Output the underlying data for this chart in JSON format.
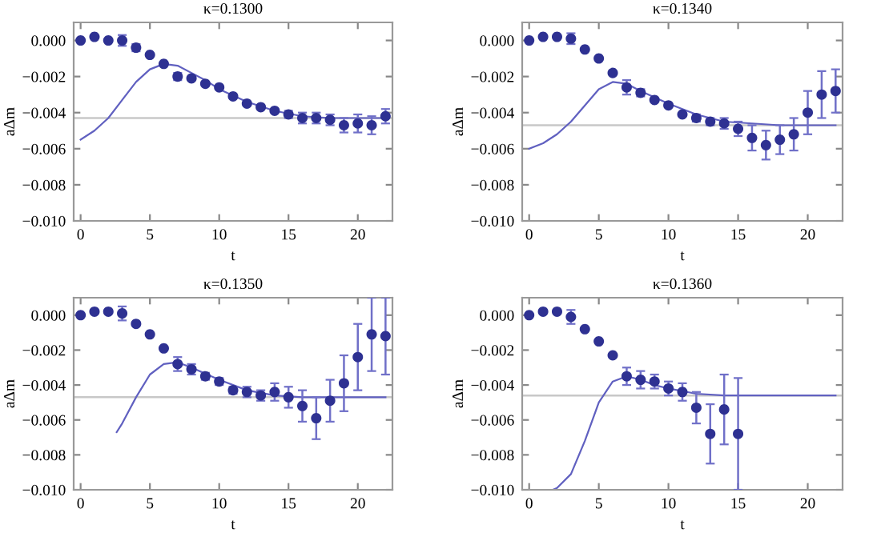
{
  "chart_data": [
    {
      "type": "scatter",
      "title": "κ=0.1300",
      "xlabel": "t",
      "ylabel": "aΔm",
      "xlim": [
        -0.5,
        22.5
      ],
      "ylim": [
        -0.01,
        0.001
      ],
      "xticks": [
        0,
        5,
        10,
        15,
        20
      ],
      "yticks": [
        {
          "value": -0.01,
          "label": "−0.010"
        },
        {
          "value": -0.008,
          "label": "−0.008"
        },
        {
          "value": -0.006,
          "label": "−0.006"
        },
        {
          "value": -0.004,
          "label": "−0.004"
        },
        {
          "value": -0.002,
          "label": "−0.002"
        },
        {
          "value": 0.0,
          "label": "0.000"
        }
      ],
      "grid": false,
      "legend": false,
      "series": [
        {
          "type": "scatter",
          "marker": "circle",
          "color": "#2e3192",
          "x": [
            0,
            1,
            2,
            3,
            4,
            5,
            6,
            7,
            8,
            9,
            10,
            11,
            12,
            13,
            14,
            15,
            16,
            17,
            18,
            19,
            20,
            21,
            22
          ],
          "values": [
            0.0,
            0.0002,
            0.0,
            0.0,
            -0.0004,
            -0.0008,
            -0.0013,
            -0.002,
            -0.0021,
            -0.0024,
            -0.0026,
            -0.0031,
            -0.0035,
            -0.0037,
            -0.0039,
            -0.0041,
            -0.0043,
            -0.0043,
            -0.0044,
            -0.0047,
            -0.0046,
            -0.0047,
            -0.0042
          ],
          "errors": [
            null,
            null,
            null,
            0.0003,
            0.0002,
            null,
            null,
            0.0002,
            null,
            null,
            null,
            null,
            null,
            null,
            null,
            0.0002,
            0.0003,
            0.0003,
            0.0003,
            0.0004,
            0.0005,
            0.0005,
            0.0004
          ]
        },
        {
          "type": "line",
          "color": "#6060c0",
          "x": [
            0,
            1,
            2,
            3,
            4,
            5,
            6,
            7,
            8,
            9,
            10,
            12,
            14,
            16,
            18,
            20,
            22
          ],
          "values": [
            -0.0055,
            -0.005,
            -0.0043,
            -0.0033,
            -0.0023,
            -0.0016,
            -0.0013,
            -0.0014,
            -0.0018,
            -0.0022,
            -0.0027,
            -0.0034,
            -0.0039,
            -0.0042,
            -0.0043,
            -0.0043,
            -0.0043
          ]
        }
      ],
      "ref_lines": [
        {
          "axis": "y",
          "value": -0.0043,
          "color": "#c8c8c8"
        }
      ]
    },
    {
      "type": "scatter",
      "title": "κ=0.1340",
      "xlabel": "t",
      "ylabel": "aΔm",
      "xlim": [
        -0.5,
        22.5
      ],
      "ylim": [
        -0.01,
        0.001
      ],
      "xticks": [
        0,
        5,
        10,
        15,
        20
      ],
      "yticks": [
        {
          "value": -0.01,
          "label": "−0.010"
        },
        {
          "value": -0.008,
          "label": "−0.008"
        },
        {
          "value": -0.006,
          "label": "−0.006"
        },
        {
          "value": -0.004,
          "label": "−0.004"
        },
        {
          "value": -0.002,
          "label": "−0.002"
        },
        {
          "value": 0.0,
          "label": "0.000"
        }
      ],
      "grid": false,
      "legend": false,
      "series": [
        {
          "type": "scatter",
          "marker": "circle",
          "color": "#2e3192",
          "x": [
            0,
            1,
            2,
            3,
            4,
            5,
            6,
            7,
            8,
            9,
            10,
            11,
            12,
            13,
            14,
            15,
            16,
            17,
            18,
            19,
            20,
            21,
            22
          ],
          "values": [
            0.0,
            0.0002,
            0.0002,
            0.0001,
            -0.0005,
            -0.001,
            -0.0018,
            -0.0026,
            -0.0029,
            -0.0033,
            -0.0036,
            -0.0041,
            -0.0043,
            -0.0045,
            -0.0046,
            -0.0049,
            -0.0054,
            -0.0058,
            -0.0055,
            -0.0052,
            -0.004,
            -0.003,
            -0.0028
          ],
          "errors": [
            null,
            null,
            null,
            0.0003,
            null,
            null,
            null,
            0.0004,
            0.0002,
            null,
            null,
            null,
            0.0002,
            0.0002,
            0.0003,
            0.0004,
            0.0007,
            0.0008,
            0.0008,
            0.0009,
            0.0012,
            0.0013,
            0.0012
          ]
        },
        {
          "type": "line",
          "color": "#6060c0",
          "x": [
            0,
            1,
            2,
            3,
            4,
            5,
            6,
            7,
            8,
            10,
            12,
            14,
            16,
            18,
            20,
            22
          ],
          "values": [
            -0.006,
            -0.0057,
            -0.0052,
            -0.0045,
            -0.0036,
            -0.0027,
            -0.0023,
            -0.0024,
            -0.0028,
            -0.0035,
            -0.0041,
            -0.0045,
            -0.0046,
            -0.0047,
            -0.0047,
            -0.0047
          ]
        }
      ],
      "ref_lines": [
        {
          "axis": "y",
          "value": -0.0047,
          "color": "#c8c8c8"
        }
      ]
    },
    {
      "type": "scatter",
      "title": "κ=0.1350",
      "xlabel": "t",
      "ylabel": "aΔm",
      "xlim": [
        -0.5,
        22.5
      ],
      "ylim": [
        -0.01,
        0.001
      ],
      "xticks": [
        0,
        5,
        10,
        15,
        20
      ],
      "yticks": [
        {
          "value": -0.01,
          "label": "−0.010"
        },
        {
          "value": -0.008,
          "label": "−0.008"
        },
        {
          "value": -0.006,
          "label": "−0.006"
        },
        {
          "value": -0.004,
          "label": "−0.004"
        },
        {
          "value": -0.002,
          "label": "−0.002"
        },
        {
          "value": 0.0,
          "label": "0.000"
        }
      ],
      "grid": false,
      "legend": false,
      "series": [
        {
          "type": "scatter",
          "marker": "circle",
          "color": "#2e3192",
          "x": [
            0,
            1,
            2,
            3,
            4,
            5,
            6,
            7,
            8,
            9,
            10,
            11,
            12,
            13,
            14,
            15,
            16,
            17,
            18,
            19,
            20,
            21,
            22
          ],
          "values": [
            0.0,
            0.0002,
            0.0002,
            0.0001,
            -0.0005,
            -0.0011,
            -0.0019,
            -0.0028,
            -0.0031,
            -0.0035,
            -0.0038,
            -0.0043,
            -0.0044,
            -0.0046,
            -0.0044,
            -0.0047,
            -0.0052,
            -0.0059,
            -0.0049,
            -0.0039,
            -0.0024,
            -0.0011,
            -0.0012
          ],
          "errors": [
            null,
            null,
            null,
            0.0004,
            null,
            null,
            null,
            0.0004,
            0.0003,
            0.0002,
            0.0002,
            0.0002,
            0.0003,
            0.0003,
            0.0005,
            0.0006,
            0.0009,
            0.0012,
            0.0012,
            0.0016,
            0.0019,
            0.0021,
            0.0022
          ]
        },
        {
          "type": "line",
          "color": "#6060c0",
          "x": [
            2.6,
            3,
            4,
            5,
            6,
            7,
            8,
            10,
            12,
            14,
            16,
            18,
            20,
            22
          ],
          "values": [
            -0.0067,
            -0.0062,
            -0.0047,
            -0.0034,
            -0.0028,
            -0.0027,
            -0.003,
            -0.0037,
            -0.0043,
            -0.0046,
            -0.0047,
            -0.0047,
            -0.0047,
            -0.0047
          ]
        }
      ],
      "ref_lines": [
        {
          "axis": "y",
          "value": -0.0047,
          "color": "#c8c8c8"
        }
      ]
    },
    {
      "type": "scatter",
      "title": "κ=0.1360",
      "xlabel": "t",
      "ylabel": "aΔm",
      "xlim": [
        -0.5,
        22.5
      ],
      "ylim": [
        -0.01,
        0.001
      ],
      "xticks": [
        0,
        5,
        10,
        15,
        20
      ],
      "yticks": [
        {
          "value": -0.01,
          "label": "−0.010"
        },
        {
          "value": -0.008,
          "label": "−0.008"
        },
        {
          "value": -0.006,
          "label": "−0.006"
        },
        {
          "value": -0.004,
          "label": "−0.004"
        },
        {
          "value": -0.002,
          "label": "−0.002"
        },
        {
          "value": 0.0,
          "label": "0.000"
        }
      ],
      "grid": false,
      "legend": false,
      "series": [
        {
          "type": "scatter",
          "marker": "circle",
          "color": "#2e3192",
          "x": [
            0,
            1,
            2,
            3,
            4,
            5,
            6,
            7,
            8,
            9,
            10,
            11,
            12,
            13,
            14,
            15
          ],
          "values": [
            0.0,
            0.0002,
            0.0002,
            -0.0001,
            -0.0008,
            -0.0015,
            -0.0023,
            -0.0035,
            -0.0037,
            -0.0038,
            -0.0042,
            -0.0044,
            -0.0053,
            -0.0068,
            -0.0054,
            -0.0068
          ],
          "errors": [
            null,
            null,
            null,
            0.0004,
            null,
            null,
            null,
            0.0005,
            0.0005,
            0.0004,
            0.0004,
            0.0005,
            0.0009,
            0.0017,
            0.002,
            0.0032
          ]
        },
        {
          "type": "line",
          "color": "#6060c0",
          "x": [
            1.7,
            2,
            3,
            4,
            5,
            6,
            7,
            8,
            9,
            10,
            12,
            14,
            16,
            18,
            20,
            22
          ],
          "values": [
            -0.01,
            -0.0099,
            -0.0091,
            -0.0072,
            -0.005,
            -0.0038,
            -0.0035,
            -0.0037,
            -0.004,
            -0.0042,
            -0.0045,
            -0.0046,
            -0.0046,
            -0.0046,
            -0.0046,
            -0.0046
          ]
        }
      ],
      "ref_lines": [
        {
          "axis": "y",
          "value": -0.0046,
          "color": "#c8c8c8"
        }
      ]
    }
  ]
}
